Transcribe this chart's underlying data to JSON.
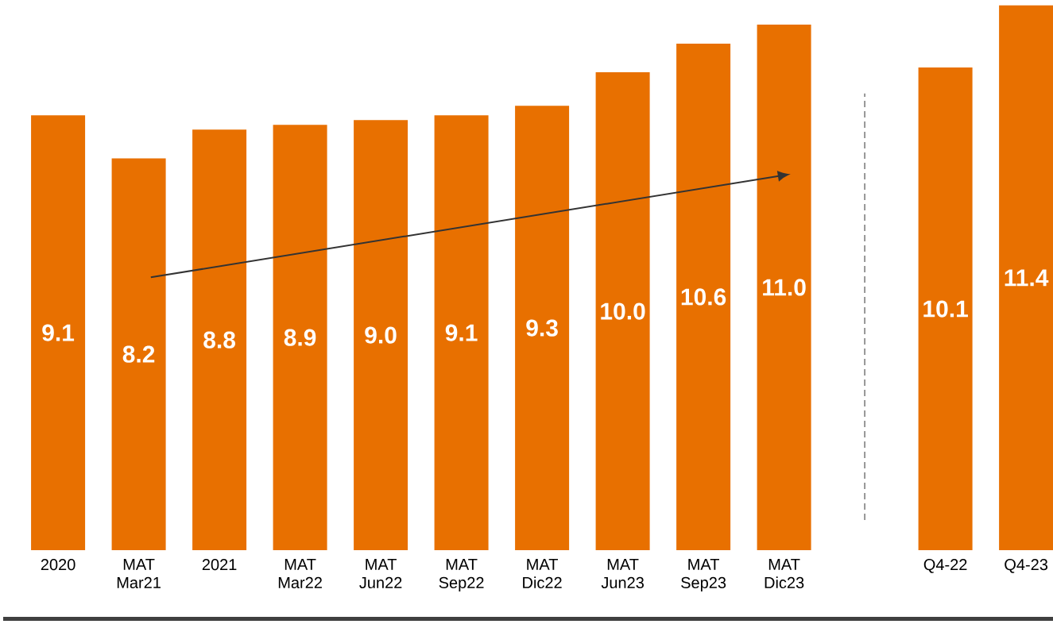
{
  "chart_data": {
    "type": "bar",
    "categories": [
      "2020",
      "MAT Mar21",
      "2021",
      "MAT Mar22",
      "MAT Jun22",
      "MAT Sep22",
      "MAT Dic22",
      "MAT Jun23",
      "MAT Sep23",
      "MAT Dic23",
      null,
      "Q4-22",
      "Q4-23"
    ],
    "values": [
      9.1,
      8.2,
      8.8,
      8.9,
      9.0,
      9.1,
      9.3,
      10.0,
      10.6,
      11.0,
      null,
      10.1,
      11.4
    ],
    "value_labels": [
      "9.1",
      "8.2",
      "8.8",
      "8.9",
      "9.0",
      "9.1",
      "9.3",
      "10.0",
      "10.6",
      "11.0",
      null,
      "10.1",
      "11.4"
    ],
    "color": "#e87000"
  }
}
